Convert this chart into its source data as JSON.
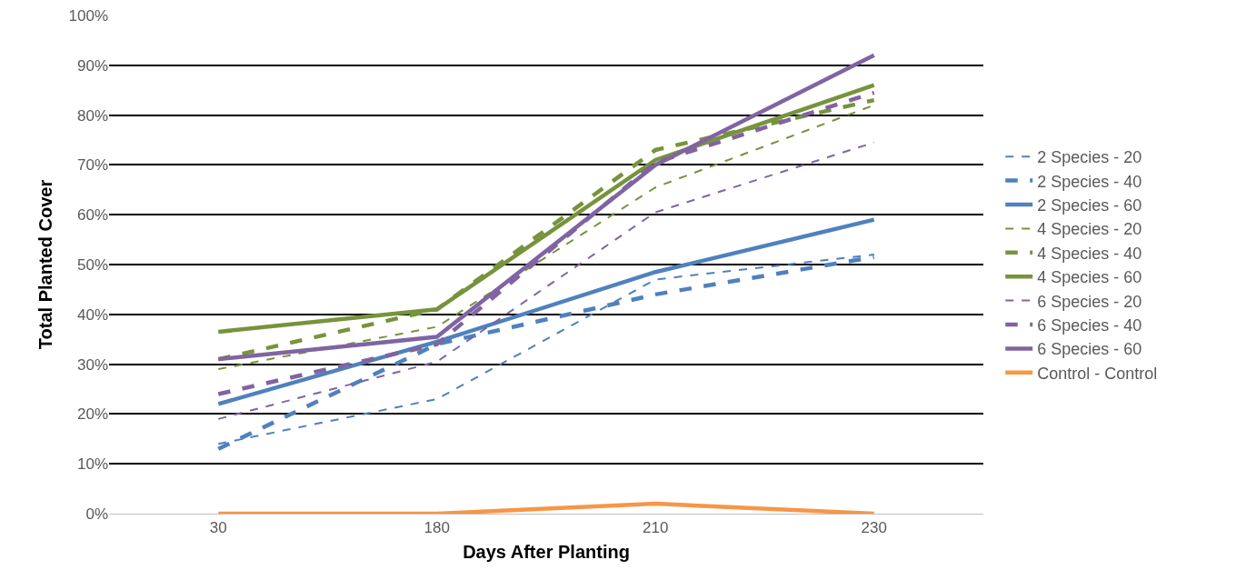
{
  "chart_data": {
    "type": "line",
    "xlabel": "Days After Planting",
    "ylabel": "Total Planted Cover",
    "categories": [
      "30",
      "180",
      "210",
      "230"
    ],
    "ylim": [
      0,
      100
    ],
    "yticks": [
      {
        "value": 0,
        "label": "0%"
      },
      {
        "value": 10,
        "label": "10%"
      },
      {
        "value": 20,
        "label": "20%"
      },
      {
        "value": 30,
        "label": "30%"
      },
      {
        "value": 40,
        "label": "40%"
      },
      {
        "value": 50,
        "label": "50%"
      },
      {
        "value": 60,
        "label": "60%"
      },
      {
        "value": 70,
        "label": "70%"
      },
      {
        "value": 80,
        "label": "80%"
      },
      {
        "value": 90,
        "label": "90%"
      },
      {
        "value": 100,
        "label": "100%"
      }
    ],
    "grid": "y",
    "legend": "right",
    "marker": "none",
    "series": [
      {
        "name": "2 Species - 20",
        "color": "#4f81bd",
        "line_style": "dotted",
        "values": [
          14,
          23,
          47,
          52
        ]
      },
      {
        "name": "2 Species - 40",
        "color": "#4f81bd",
        "line_style": "dashed",
        "values": [
          13,
          34,
          44,
          51.5
        ]
      },
      {
        "name": "2 Species - 60",
        "color": "#4f81bd",
        "line_style": "solid",
        "values": [
          22,
          34.5,
          48.5,
          59
        ]
      },
      {
        "name": "4 Species - 20",
        "color": "#77933c",
        "line_style": "dotted",
        "values": [
          29,
          37.5,
          65.5,
          82
        ]
      },
      {
        "name": "4 Species - 40",
        "color": "#77933c",
        "line_style": "dashed",
        "values": [
          31,
          41,
          73,
          83
        ]
      },
      {
        "name": "4 Species - 60",
        "color": "#77933c",
        "line_style": "solid",
        "values": [
          36.5,
          41,
          71,
          86
        ]
      },
      {
        "name": "6 Species - 20",
        "color": "#8064a2",
        "line_style": "dotted",
        "values": [
          19,
          30.5,
          60.5,
          74.5
        ]
      },
      {
        "name": "6 Species - 40",
        "color": "#8064a2",
        "line_style": "dashed",
        "values": [
          24,
          34,
          70.5,
          84.5
        ]
      },
      {
        "name": "6 Species - 60",
        "color": "#8064a2",
        "line_style": "solid",
        "values": [
          31,
          35.5,
          70,
          92
        ]
      },
      {
        "name": "Control - Control",
        "color": "#f79646",
        "line_style": "solid",
        "values": [
          0,
          0,
          2,
          0
        ]
      }
    ]
  }
}
